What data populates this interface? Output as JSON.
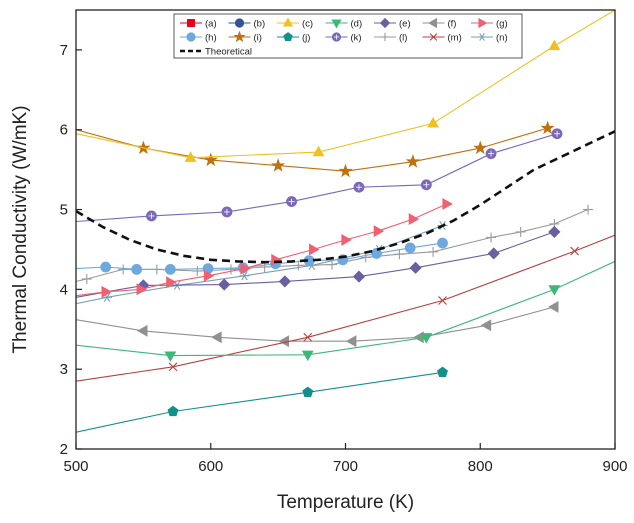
{
  "chart_data": {
    "type": "line",
    "title": "",
    "xlabel": "Temperature (K)",
    "ylabel": "Thermal Conductivity (W/mK)",
    "xlim": [
      500,
      900
    ],
    "ylim": [
      2,
      7.5
    ],
    "x_ticks": [
      500,
      600,
      700,
      800,
      900
    ],
    "y_ticks": [
      2,
      3,
      4,
      5,
      6,
      7
    ],
    "grid": false,
    "legend_position": "top",
    "series": [
      {
        "name": "(a)",
        "color": "#e8001c",
        "marker": "square",
        "dash": "solid",
        "points": []
      },
      {
        "name": "(b)",
        "color": "#2f5597",
        "marker": "circle",
        "dash": "solid",
        "points": []
      },
      {
        "name": "(c)",
        "color": "#f0c020",
        "marker": "triangle-up",
        "dash": "solid",
        "points": [
          [
            500,
            5.95
          ],
          [
            585,
            5.65
          ],
          [
            680,
            5.72
          ],
          [
            765,
            6.08
          ],
          [
            855,
            7.05
          ],
          [
            900,
            7.5
          ]
        ]
      },
      {
        "name": "(d)",
        "color": "#3cb878",
        "marker": "triangle-down",
        "dash": "solid",
        "points": [
          [
            500,
            3.3
          ],
          [
            570,
            3.17
          ],
          [
            672,
            3.18
          ],
          [
            760,
            3.4
          ],
          [
            855,
            4.0
          ],
          [
            900,
            4.35
          ]
        ]
      },
      {
        "name": "(e)",
        "color": "#6a5fa0",
        "marker": "diamond",
        "dash": "solid",
        "points": [
          [
            500,
            3.9
          ],
          [
            550,
            4.05
          ],
          [
            610,
            4.06
          ],
          [
            655,
            4.1
          ],
          [
            710,
            4.16
          ],
          [
            752,
            4.27
          ],
          [
            810,
            4.45
          ],
          [
            855,
            4.72
          ]
        ]
      },
      {
        "name": "(f)",
        "color": "#909090",
        "marker": "triangle-left",
        "dash": "solid",
        "points": [
          [
            500,
            3.62
          ],
          [
            550,
            3.48
          ],
          [
            605,
            3.4
          ],
          [
            655,
            3.35
          ],
          [
            705,
            3.35
          ],
          [
            755,
            3.4
          ],
          [
            805,
            3.55
          ],
          [
            855,
            3.78
          ]
        ]
      },
      {
        "name": "(g)",
        "color": "#f06070",
        "marker": "triangle-right",
        "dash": "solid",
        "points": [
          [
            500,
            3.92
          ],
          [
            522,
            3.97
          ],
          [
            548,
            4.0
          ],
          [
            570,
            4.09
          ],
          [
            598,
            4.17
          ],
          [
            625,
            4.26
          ],
          [
            648,
            4.37
          ],
          [
            676,
            4.5
          ],
          [
            700,
            4.62
          ],
          [
            724,
            4.73
          ],
          [
            750,
            4.88
          ],
          [
            775,
            5.07
          ]
        ]
      },
      {
        "name": "(h)",
        "color": "#6fa8dc",
        "marker": "circle",
        "dash": "solid",
        "points": [
          [
            500,
            4.26
          ],
          [
            522,
            4.28
          ],
          [
            545,
            4.25
          ],
          [
            570,
            4.25
          ],
          [
            598,
            4.26
          ],
          [
            624,
            4.27
          ],
          [
            648,
            4.32
          ],
          [
            673,
            4.36
          ],
          [
            698,
            4.37
          ],
          [
            723,
            4.45
          ],
          [
            748,
            4.52
          ],
          [
            772,
            4.58
          ]
        ]
      },
      {
        "name": "(i)",
        "color": "#c07010",
        "marker": "star",
        "dash": "solid",
        "points": [
          [
            500,
            6.0
          ],
          [
            550,
            5.77
          ],
          [
            600,
            5.62
          ],
          [
            650,
            5.55
          ],
          [
            700,
            5.48
          ],
          [
            750,
            5.6
          ],
          [
            800,
            5.77
          ],
          [
            850,
            6.02
          ]
        ]
      },
      {
        "name": "(j)",
        "color": "#12918a",
        "marker": "pentagon",
        "dash": "solid",
        "points": [
          [
            500,
            2.21
          ],
          [
            572,
            2.47
          ],
          [
            672,
            2.71
          ],
          [
            772,
            2.96
          ]
        ]
      },
      {
        "name": "(k)",
        "color": "#7b68b8",
        "marker": "circle-plus",
        "dash": "solid",
        "points": [
          [
            500,
            4.85
          ],
          [
            556,
            4.92
          ],
          [
            612,
            4.97
          ],
          [
            660,
            5.1
          ],
          [
            710,
            5.28
          ],
          [
            760,
            5.31
          ],
          [
            808,
            5.7
          ],
          [
            857,
            5.95
          ]
        ]
      },
      {
        "name": "(l)",
        "color": "#9a9a9a",
        "marker": "plus",
        "dash": "solid",
        "points": [
          [
            500,
            4.1
          ],
          [
            508,
            4.13
          ],
          [
            535,
            4.25
          ],
          [
            560,
            4.25
          ],
          [
            590,
            4.23
          ],
          [
            615,
            4.25
          ],
          [
            640,
            4.28
          ],
          [
            665,
            4.3
          ],
          [
            690,
            4.31
          ],
          [
            715,
            4.4
          ],
          [
            740,
            4.44
          ],
          [
            765,
            4.47
          ],
          [
            808,
            4.65
          ],
          [
            830,
            4.72
          ],
          [
            855,
            4.82
          ],
          [
            880,
            5.0
          ]
        ]
      },
      {
        "name": "(m)",
        "color": "#b84040",
        "marker": "x",
        "dash": "solid",
        "points": [
          [
            500,
            2.85
          ],
          [
            572,
            3.03
          ],
          [
            672,
            3.4
          ],
          [
            772,
            3.86
          ],
          [
            870,
            4.48
          ],
          [
            900,
            4.68
          ]
        ]
      },
      {
        "name": "(n)",
        "color": "#7aa0b8",
        "marker": "asterisk",
        "dash": "solid",
        "points": [
          [
            500,
            3.82
          ],
          [
            523,
            3.9
          ],
          [
            575,
            4.05
          ],
          [
            625,
            4.17
          ],
          [
            675,
            4.3
          ],
          [
            725,
            4.5
          ],
          [
            772,
            4.8
          ]
        ]
      },
      {
        "name": "Theoretical",
        "color": "#111111",
        "marker": "none",
        "dash": "dash",
        "points": [
          [
            500,
            4.98
          ],
          [
            520,
            4.78
          ],
          [
            540,
            4.62
          ],
          [
            560,
            4.5
          ],
          [
            580,
            4.42
          ],
          [
            600,
            4.37
          ],
          [
            620,
            4.35
          ],
          [
            640,
            4.34
          ],
          [
            660,
            4.35
          ],
          [
            680,
            4.37
          ],
          [
            700,
            4.41
          ],
          [
            720,
            4.48
          ],
          [
            740,
            4.58
          ],
          [
            760,
            4.7
          ],
          [
            780,
            4.86
          ],
          [
            800,
            5.06
          ],
          [
            820,
            5.28
          ],
          [
            840,
            5.5
          ],
          [
            860,
            5.66
          ],
          [
            880,
            5.82
          ],
          [
            900,
            5.98
          ]
        ]
      }
    ],
    "legend_rows": [
      [
        "(a)",
        "(b)",
        "(c)",
        "(d)",
        "(e)",
        "(f)",
        "(g)"
      ],
      [
        "(h)",
        "(i)",
        "(j)",
        "(k)",
        "(l)",
        "(m)",
        "(n)"
      ],
      [
        "Theoretical"
      ]
    ]
  }
}
